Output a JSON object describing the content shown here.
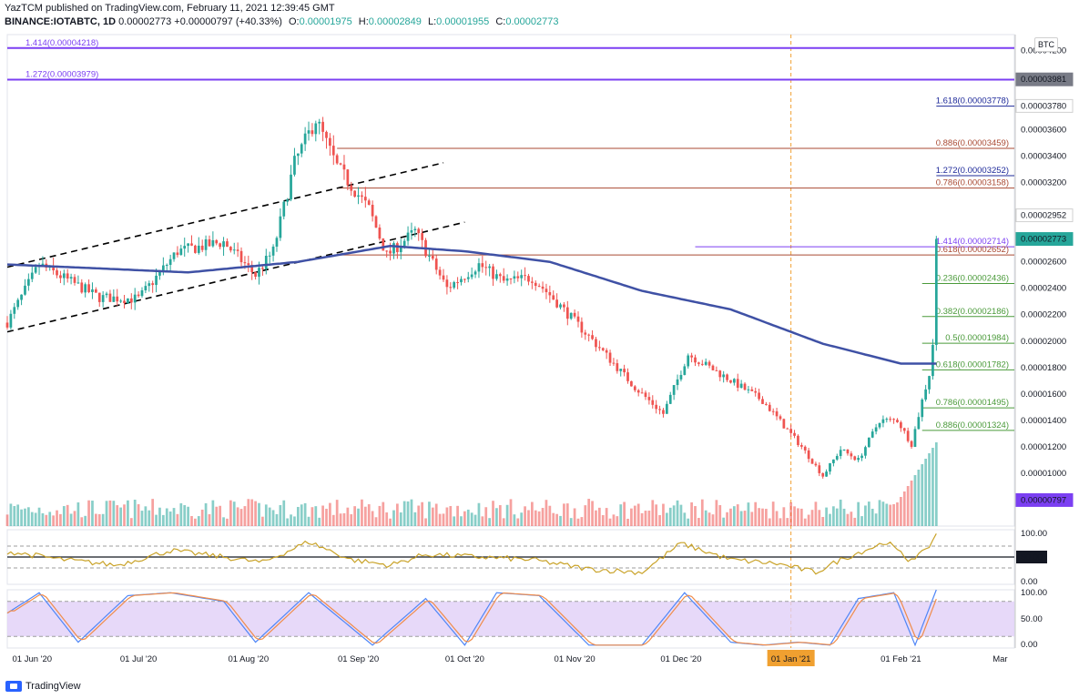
{
  "header": {
    "publisher_line": "YazTCM published on TradingView.com, February 11, 2021 12:39:45 GMT",
    "symbol": "BINANCE:IOTABTC, 1D",
    "last_price": "0.00002773",
    "change": "+0.00000797 (+40.33%)",
    "open_label": "O:",
    "open": "0.00001975",
    "high_label": "H:",
    "high": "0.00002849",
    "low_label": "L:",
    "low": "0.00001955",
    "close_label": "C:",
    "close": "0.00002773"
  },
  "currency_badge": "BTC",
  "footer": {
    "brand": "TradingView"
  },
  "colors": {
    "up": "#26a69a",
    "down": "#ef5350",
    "ma": "#3f51a5",
    "rsi": "#c9a227",
    "stoch_k": "#4f86f7",
    "stoch_d": "#f08c4a",
    "stoch_band": "#e1d0f7",
    "fib_purple": "#7b3ff2",
    "fib_brown": "#a94a33",
    "fib_green": "#4a9a3a",
    "fib_navy": "#1e2a9a",
    "channel": "#000000",
    "jan_line": "#f0a030"
  },
  "chart_data": [
    {
      "type": "candlestick",
      "title": "",
      "price_axis_unit": "BTC",
      "ylim": [
        6e-06,
        4.32e-05
      ],
      "xlim": [
        "2020-05-25",
        "2021-03-05"
      ],
      "y_tick_labels": [
        "0.00004200",
        "0.00003600",
        "0.00003400",
        "0.00003200",
        "0.00002600",
        "0.00002400",
        "0.00002200",
        "0.00002000",
        "0.00001800",
        "0.00001600",
        "0.00001400",
        "0.00001200",
        "0.00001000"
      ],
      "y_ticks": [
        4.2e-05,
        3.6e-05,
        3.4e-05,
        3.2e-05,
        2.6e-05,
        2.4e-05,
        2.2e-05,
        2e-05,
        1.8e-05,
        1.6e-05,
        1.4e-05,
        1.2e-05,
        1e-05
      ],
      "x_tick_labels": [
        "01 Jun '20",
        "01 Jul '20",
        "01 Aug '20",
        "01 Sep '20",
        "01 Oct '20",
        "01 Nov '20",
        "01 Dec '20",
        "01 Jan '21",
        "01 Feb '21",
        "Mar"
      ],
      "x_ticks": [
        "2020-06-01",
        "2020-07-01",
        "2020-08-01",
        "2020-09-01",
        "2020-10-01",
        "2020-11-01",
        "2020-12-01",
        "2021-01-01",
        "2021-02-01",
        "2021-03-01"
      ],
      "highlighted_x_tick": "01 Jan '21",
      "price_key_points": [
        {
          "date": "2020-05-25",
          "close": 2.14e-05
        },
        {
          "date": "2020-06-03",
          "close": 2.58e-05
        },
        {
          "date": "2020-06-20",
          "close": 2.33e-05
        },
        {
          "date": "2020-07-01",
          "close": 2.32e-05
        },
        {
          "date": "2020-07-12",
          "close": 2.68e-05
        },
        {
          "date": "2020-07-25",
          "close": 2.75e-05
        },
        {
          "date": "2020-08-03",
          "close": 2.5e-05
        },
        {
          "date": "2020-08-08",
          "close": 2.68e-05
        },
        {
          "date": "2020-08-14",
          "close": 3.35e-05
        },
        {
          "date": "2020-08-20",
          "close": 3.68e-05
        },
        {
          "date": "2020-08-26",
          "close": 3.32e-05
        },
        {
          "date": "2020-09-04",
          "close": 3e-05
        },
        {
          "date": "2020-09-09",
          "close": 2.65e-05
        },
        {
          "date": "2020-09-17",
          "close": 2.83e-05
        },
        {
          "date": "2020-09-26",
          "close": 2.4e-05
        },
        {
          "date": "2020-10-05",
          "close": 2.58e-05
        },
        {
          "date": "2020-10-12",
          "close": 2.45e-05
        },
        {
          "date": "2020-10-20",
          "close": 2.48e-05
        },
        {
          "date": "2020-10-25",
          "close": 2.35e-05
        },
        {
          "date": "2020-11-08",
          "close": 1.95e-05
        },
        {
          "date": "2020-11-18",
          "close": 1.65e-05
        },
        {
          "date": "2020-11-26",
          "close": 1.45e-05
        },
        {
          "date": "2020-12-03",
          "close": 1.9e-05
        },
        {
          "date": "2020-12-14",
          "close": 1.72e-05
        },
        {
          "date": "2020-12-24",
          "close": 1.55e-05
        },
        {
          "date": "2021-01-04",
          "close": 1.2e-05
        },
        {
          "date": "2021-01-10",
          "close": 9.8e-06
        },
        {
          "date": "2021-01-15",
          "close": 1.18e-05
        },
        {
          "date": "2021-01-20",
          "close": 1.1e-05
        },
        {
          "date": "2021-01-26",
          "close": 1.4e-05
        },
        {
          "date": "2021-01-31",
          "close": 1.4e-05
        },
        {
          "date": "2021-02-04",
          "close": 1.22e-05
        },
        {
          "date": "2021-02-07",
          "close": 1.55e-05
        },
        {
          "date": "2021-02-09",
          "close": 1.75e-05
        },
        {
          "date": "2021-02-10",
          "close": 1.98e-05
        },
        {
          "date": "2021-02-11",
          "close": 2.773e-05
        }
      ],
      "moving_average_key_points": [
        {
          "date": "2020-05-25",
          "value": 2.58e-05
        },
        {
          "date": "2020-06-20",
          "value": 2.55e-05
        },
        {
          "date": "2020-07-15",
          "value": 2.52e-05
        },
        {
          "date": "2020-08-15",
          "value": 2.6e-05
        },
        {
          "date": "2020-09-10",
          "value": 2.72e-05
        },
        {
          "date": "2020-10-01",
          "value": 2.68e-05
        },
        {
          "date": "2020-10-25",
          "value": 2.6e-05
        },
        {
          "date": "2020-11-20",
          "value": 2.38e-05
        },
        {
          "date": "2020-12-15",
          "value": 2.24e-05
        },
        {
          "date": "2021-01-10",
          "value": 1.98e-05
        },
        {
          "date": "2021-02-01",
          "value": 1.83e-05
        },
        {
          "date": "2021-02-11",
          "value": 1.83e-05
        }
      ],
      "ascending_channel": [
        {
          "from": {
            "date": "2020-05-25",
            "value": 2.56e-05
          },
          "to": {
            "date": "2020-09-25",
            "value": 3.35e-05
          }
        },
        {
          "from": {
            "date": "2020-05-25",
            "value": 2.07e-05
          },
          "to": {
            "date": "2020-10-01",
            "value": 2.9e-05
          }
        }
      ],
      "fib_levels": [
        {
          "label": "1.414(0.00004218)",
          "value": 4.218e-05,
          "color": "purple",
          "span": "full",
          "label_side": "left"
        },
        {
          "label": "1.272(0.00003979)",
          "value": 3.979e-05,
          "color": "purple",
          "span": "full",
          "label_side": "left"
        },
        {
          "label": "1.618(0.00003778)",
          "value": 3.778e-05,
          "color": "navy",
          "span": "right",
          "label_side": "right"
        },
        {
          "label": "0.886(0.00003459)",
          "value": 3.459e-05,
          "color": "brown",
          "span": "wide",
          "label_side": "right"
        },
        {
          "label": "1.272(0.00003252)",
          "value": 3.252e-05,
          "color": "navy",
          "span": "right",
          "label_side": "right"
        },
        {
          "label": "0.786(0.00003158)",
          "value": 3.158e-05,
          "color": "brown",
          "span": "wide",
          "label_side": "right"
        },
        {
          "label": "1.414(0.00002714)",
          "value": 2.714e-05,
          "color": "purple",
          "span": "mid",
          "label_side": "right"
        },
        {
          "label": "0.618(0.00002652)",
          "value": 2.652e-05,
          "color": "brown",
          "span": "wide",
          "label_side": "right"
        },
        {
          "label": "0.236(0.00002436)",
          "value": 2.436e-05,
          "color": "green",
          "span": "short",
          "label_side": "right"
        },
        {
          "label": "0.382(0.00002186)",
          "value": 2.186e-05,
          "color": "green",
          "span": "short",
          "label_side": "right"
        },
        {
          "label": "0.5(0.00001984)",
          "value": 1.984e-05,
          "color": "green",
          "span": "short",
          "label_side": "right"
        },
        {
          "label": "0.618(0.00001782)",
          "value": 1.782e-05,
          "color": "green",
          "span": "short",
          "label_side": "right"
        },
        {
          "label": "0.786(0.00001495)",
          "value": 1.495e-05,
          "color": "green",
          "span": "short",
          "label_side": "right"
        },
        {
          "label": "0.886(0.00001324)",
          "value": 1.324e-05,
          "color": "green",
          "span": "short",
          "label_side": "right"
        }
      ],
      "price_badges": [
        {
          "label": "0.00003981",
          "value": 3.981e-05,
          "style": "grey"
        },
        {
          "label": "0.00003780",
          "value": 3.78e-05,
          "style": "light"
        },
        {
          "label": "0.00002952",
          "value": 2.952e-05,
          "style": "light"
        },
        {
          "label": "0.00002773",
          "value": 2.773e-05,
          "style": "current"
        },
        {
          "label": "0.00000797",
          "value": 7.97e-06,
          "style": "purple"
        }
      ]
    },
    {
      "type": "line",
      "name": "RSI",
      "ylim": [
        0,
        100
      ],
      "y_tick_labels": [
        "100.00",
        "50.00",
        "0.00"
      ],
      "y_ticks": [
        100,
        50,
        0
      ],
      "reference_lines": [
        70,
        50,
        30
      ],
      "highlighted_level": {
        "value": 50,
        "label": "50.00"
      },
      "key_points": [
        {
          "date": "2020-05-25",
          "value": 60
        },
        {
          "date": "2020-06-10",
          "value": 45
        },
        {
          "date": "2020-06-25",
          "value": 35
        },
        {
          "date": "2020-07-10",
          "value": 62
        },
        {
          "date": "2020-07-25",
          "value": 50
        },
        {
          "date": "2020-08-05",
          "value": 40
        },
        {
          "date": "2020-08-18",
          "value": 78
        },
        {
          "date": "2020-08-30",
          "value": 45
        },
        {
          "date": "2020-09-10",
          "value": 35
        },
        {
          "date": "2020-09-20",
          "value": 55
        },
        {
          "date": "2020-10-05",
          "value": 50
        },
        {
          "date": "2020-10-20",
          "value": 45
        },
        {
          "date": "2020-11-05",
          "value": 28
        },
        {
          "date": "2020-11-20",
          "value": 22
        },
        {
          "date": "2020-12-01",
          "value": 75
        },
        {
          "date": "2020-12-15",
          "value": 45
        },
        {
          "date": "2020-12-28",
          "value": 38
        },
        {
          "date": "2021-01-08",
          "value": 22
        },
        {
          "date": "2021-01-15",
          "value": 45
        },
        {
          "date": "2021-01-28",
          "value": 78
        },
        {
          "date": "2021-02-03",
          "value": 45
        },
        {
          "date": "2021-02-08",
          "value": 60
        },
        {
          "date": "2021-02-11",
          "value": 92
        }
      ]
    },
    {
      "type": "line",
      "name": "Stochastic RSI",
      "ylim": [
        0,
        100
      ],
      "y_tick_labels": [
        "100.00",
        "50.00",
        "0.00"
      ],
      "y_ticks": [
        100,
        50,
        0
      ],
      "band": [
        20,
        80
      ],
      "k_key_points": [
        {
          "date": "2020-05-25",
          "value": 60
        },
        {
          "date": "2020-06-03",
          "value": 95
        },
        {
          "date": "2020-06-14",
          "value": 10
        },
        {
          "date": "2020-06-28",
          "value": 90
        },
        {
          "date": "2020-07-10",
          "value": 95
        },
        {
          "date": "2020-07-25",
          "value": 80
        },
        {
          "date": "2020-08-03",
          "value": 10
        },
        {
          "date": "2020-08-18",
          "value": 95
        },
        {
          "date": "2020-09-05",
          "value": 5
        },
        {
          "date": "2020-09-20",
          "value": 85
        },
        {
          "date": "2020-10-01",
          "value": 5
        },
        {
          "date": "2020-10-10",
          "value": 95
        },
        {
          "date": "2020-10-22",
          "value": 90
        },
        {
          "date": "2020-11-05",
          "value": 5
        },
        {
          "date": "2020-11-20",
          "value": 5
        },
        {
          "date": "2020-12-02",
          "value": 95
        },
        {
          "date": "2020-12-15",
          "value": 10
        },
        {
          "date": "2020-12-24",
          "value": 5
        },
        {
          "date": "2021-01-03",
          "value": 10
        },
        {
          "date": "2021-01-12",
          "value": 5
        },
        {
          "date": "2021-01-20",
          "value": 85
        },
        {
          "date": "2021-01-30",
          "value": 95
        },
        {
          "date": "2021-02-05",
          "value": 5
        },
        {
          "date": "2021-02-11",
          "value": 100
        }
      ]
    }
  ]
}
